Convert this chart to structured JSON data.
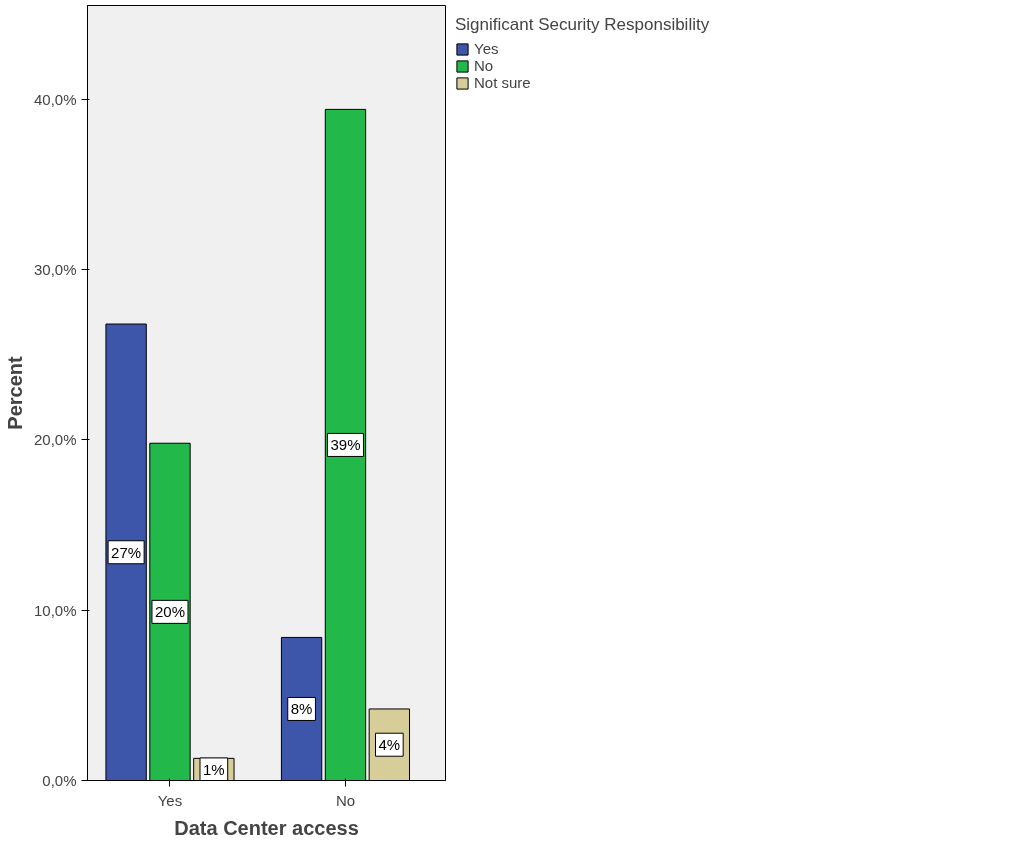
{
  "chart_data": {
    "type": "bar",
    "xlabel": "Data Center access",
    "ylabel": "Percent",
    "legend_title": "Significant Security Responsibility",
    "categories": [
      "Yes",
      "No"
    ],
    "series": [
      {
        "name": "Yes",
        "color": "#3e56aa",
        "values": [
          26.8,
          8.4
        ],
        "value_labels": [
          "27%",
          "8%"
        ]
      },
      {
        "name": "No",
        "color": "#23b84a",
        "values": [
          19.8,
          39.4
        ],
        "value_labels": [
          "20%",
          "39%"
        ]
      },
      {
        "name": "Not sure",
        "color": "#d6cd98",
        "values": [
          1.3,
          4.2
        ],
        "value_labels": [
          "1%",
          "4%"
        ]
      }
    ],
    "ylim": [
      0,
      45.5
    ],
    "yticks": [
      {
        "value": 0,
        "label": "0,0%"
      },
      {
        "value": 10,
        "label": "10,0%"
      },
      {
        "value": 20,
        "label": "20,0%"
      },
      {
        "value": 30,
        "label": "30,0%"
      },
      {
        "value": 40,
        "label": "40,0%"
      }
    ],
    "grid": false,
    "legend": "top right"
  }
}
